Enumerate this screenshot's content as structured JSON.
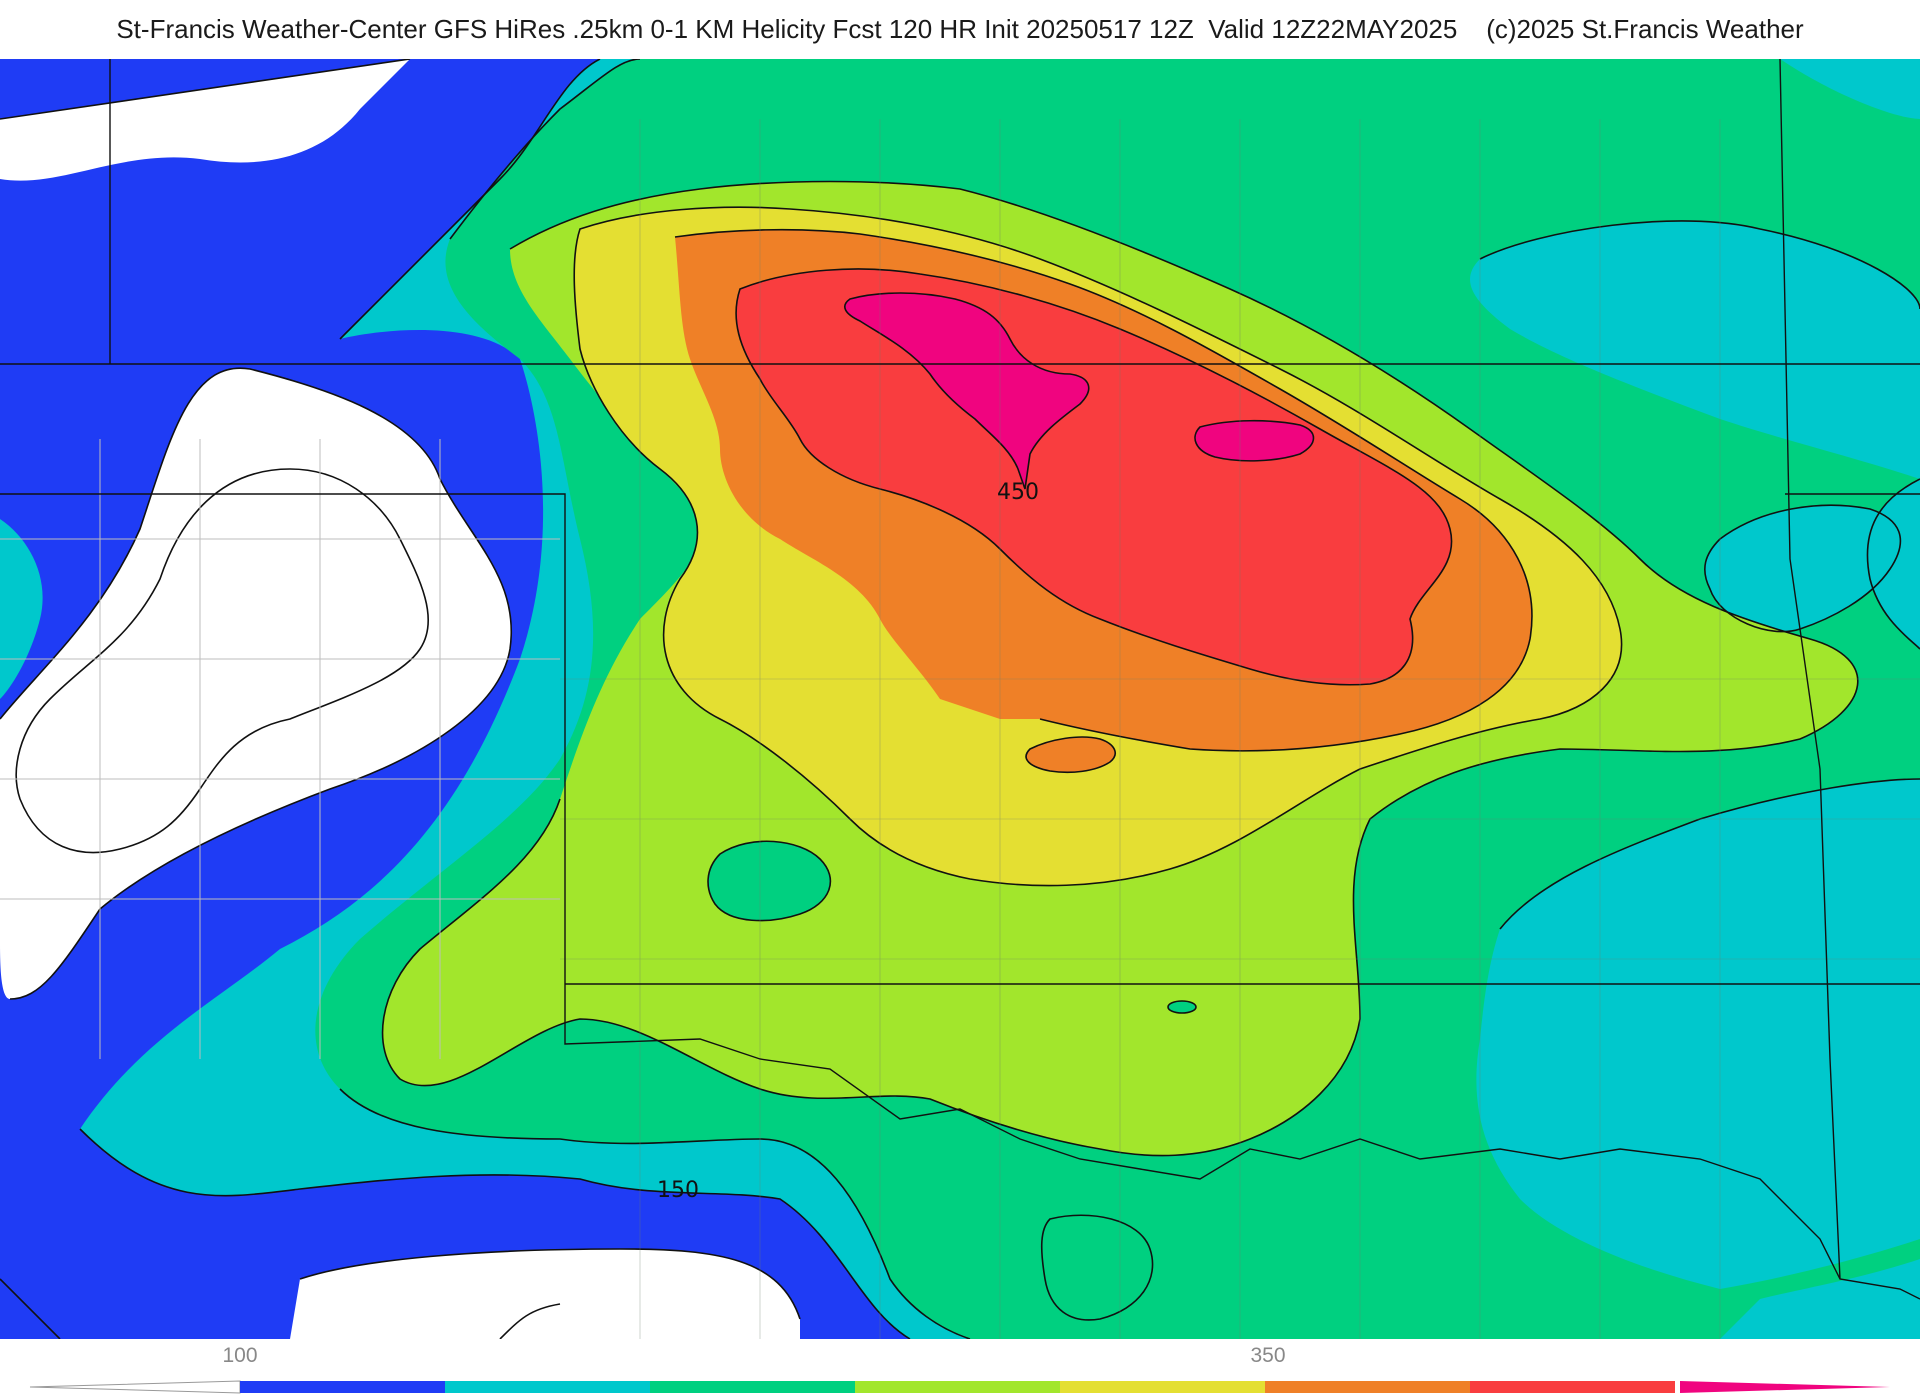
{
  "title": "St-Francis Weather-Center GFS HiRes .25km 0-1 KM Helicity Fcst 120 HR Init 20250517 12Z  Valid 12Z22MAY2025    (c)2025 St.Francis Weather",
  "contour_labels": {
    "label_450": "450",
    "label_150": "150"
  },
  "colorbar": {
    "ticks": [
      "100",
      "350"
    ],
    "colors": [
      "#1f3cf5",
      "#00c8cc",
      "#00d080",
      "#a2e62c",
      "#e4df32",
      "#ef8027",
      "#f93d3f",
      "#f0047f"
    ]
  }
}
